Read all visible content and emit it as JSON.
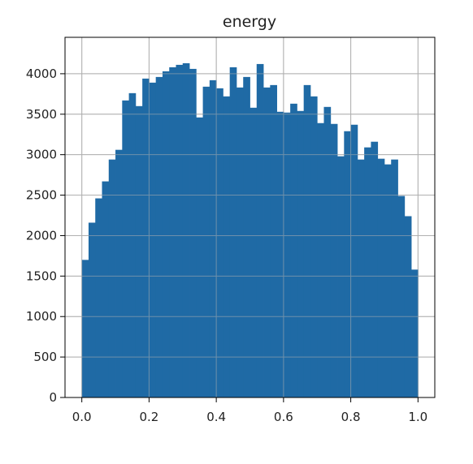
{
  "chart_data": {
    "type": "bar",
    "title": "energy",
    "xlabel": "",
    "ylabel": "",
    "xlim": [
      -0.05,
      1.05
    ],
    "ylim": [
      0,
      4450
    ],
    "x_ticks": [
      0.0,
      0.2,
      0.4,
      0.6,
      0.8,
      1.0
    ],
    "x_tick_labels": [
      "0.0",
      "0.2",
      "0.4",
      "0.6",
      "0.8",
      "1.0"
    ],
    "y_ticks": [
      0,
      500,
      1000,
      1500,
      2000,
      2500,
      3000,
      3500,
      4000
    ],
    "y_tick_labels": [
      "0",
      "500",
      "1000",
      "1500",
      "2000",
      "2500",
      "3000",
      "3500",
      "4000"
    ],
    "grid": true,
    "bar_color": "#1f6aa5",
    "bin_range": [
      0,
      1
    ],
    "bin_count": 50,
    "values": [
      1700,
      2160,
      2460,
      2670,
      2940,
      3060,
      3670,
      3760,
      3600,
      3940,
      3890,
      3960,
      4030,
      4080,
      4110,
      4130,
      4060,
      3460,
      3840,
      3920,
      3820,
      3720,
      4080,
      3830,
      3960,
      3580,
      4120,
      3830,
      3860,
      3530,
      3520,
      3630,
      3540,
      3860,
      3720,
      3390,
      3590,
      3380,
      2980,
      3290,
      3370,
      2940,
      3090,
      3160,
      2950,
      2880,
      2940,
      2490,
      2240,
      1580
    ]
  }
}
